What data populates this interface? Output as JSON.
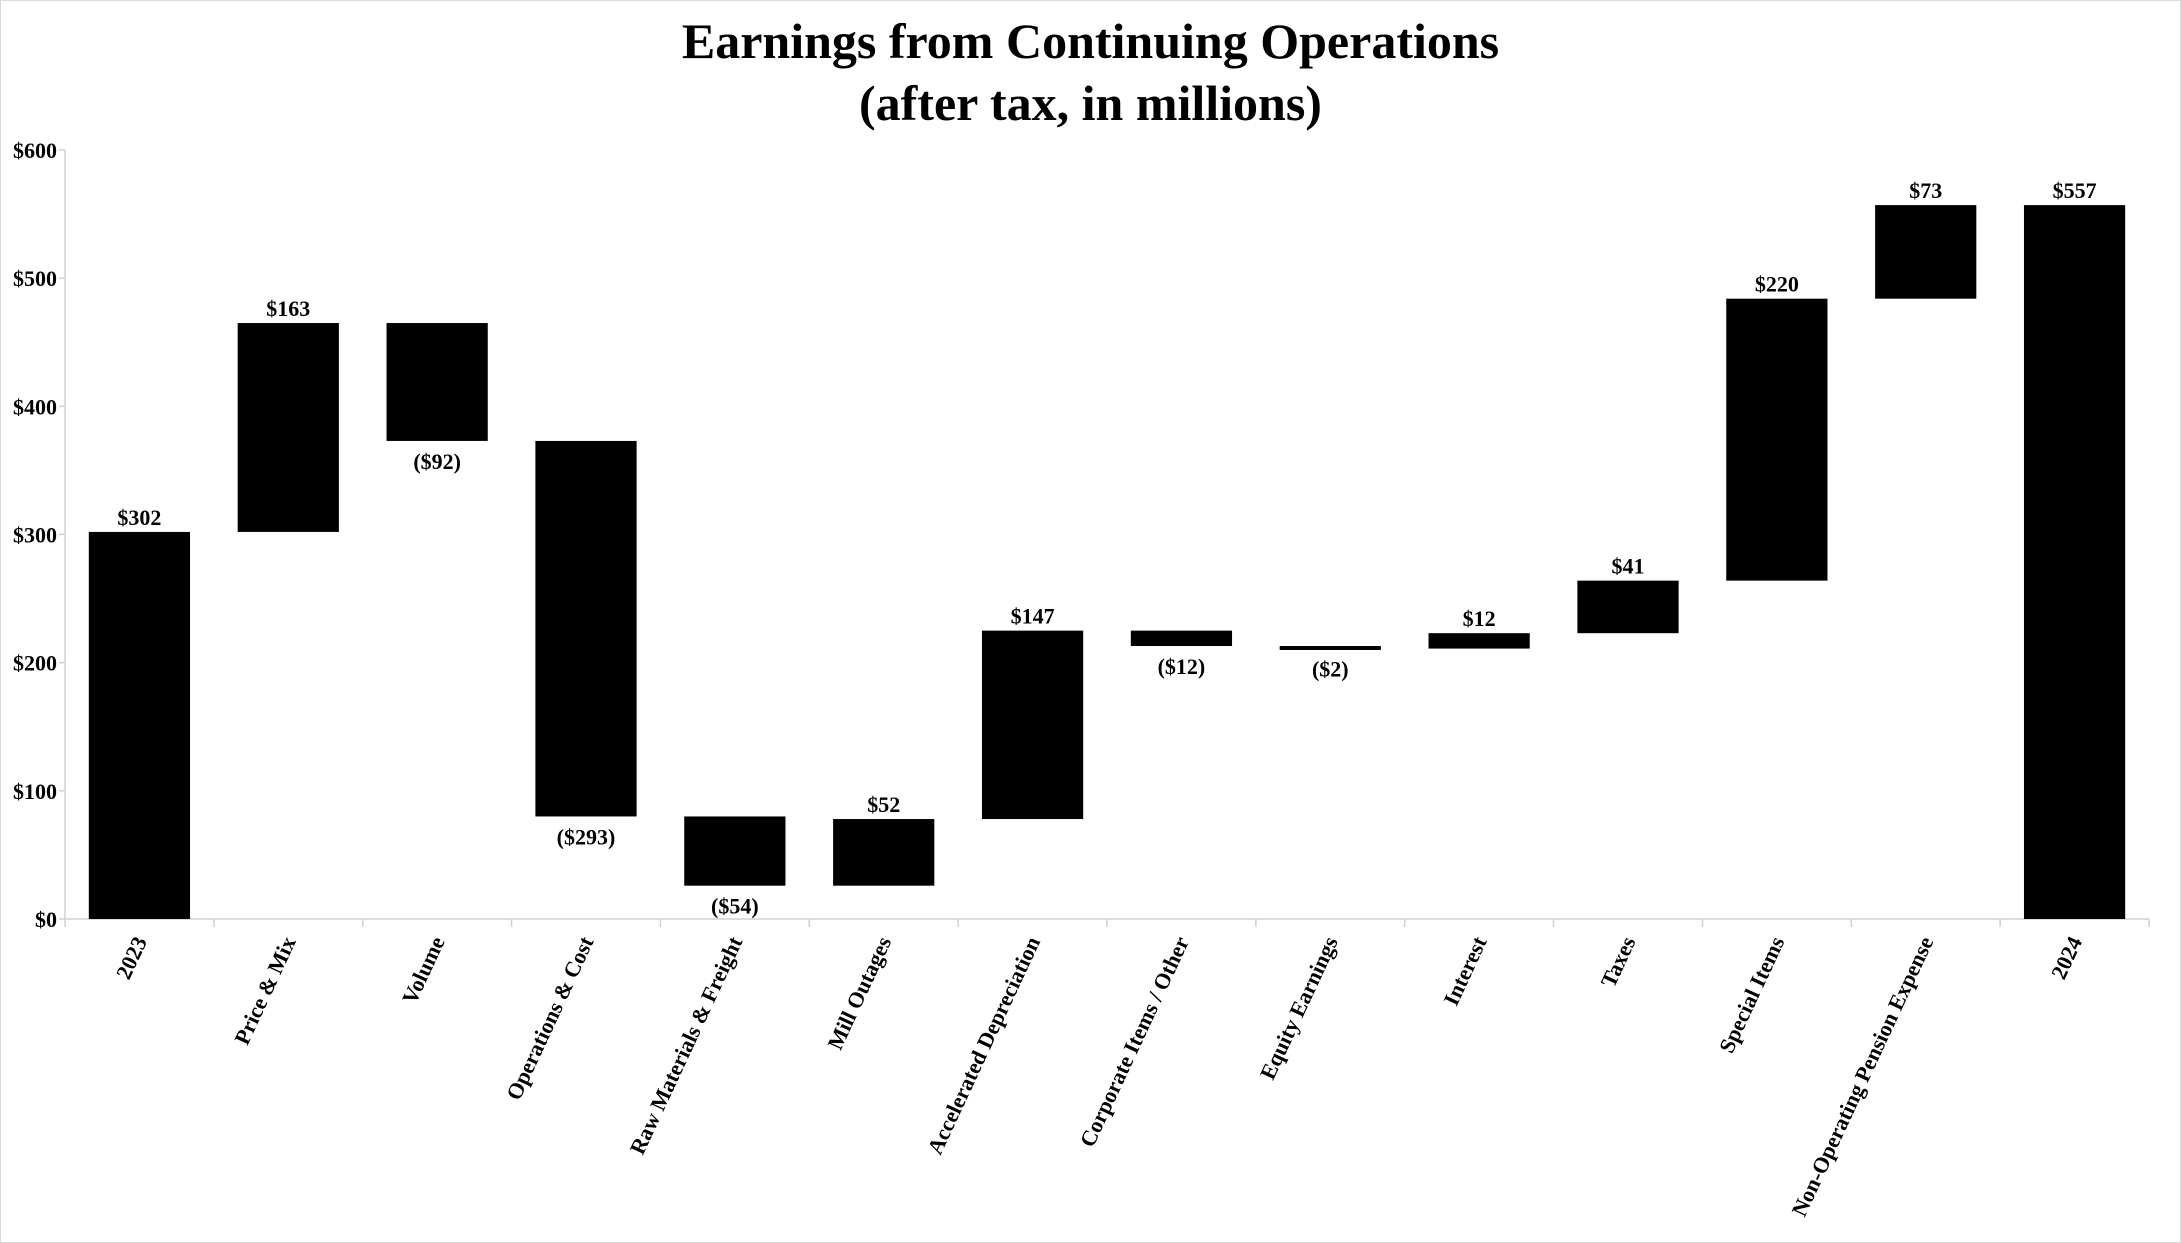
{
  "chart_data": {
    "type": "waterfall",
    "title": "Earnings from Continuing Operations",
    "subtitle": "(after tax, in millions)",
    "xlabel": "",
    "ylabel": "",
    "ylim": [
      0,
      600
    ],
    "yticks": [
      0,
      100,
      200,
      300,
      400,
      500,
      600
    ],
    "ytick_labels": [
      "$0",
      "$100",
      "$200",
      "$300",
      "$400",
      "$500",
      "$600"
    ],
    "grid": false,
    "bar_color": "#000000",
    "categories": [
      "2023",
      "Price & Mix",
      "Volume",
      "Operations & Cost",
      "Raw Materials & Freight",
      "Mill Outages",
      "Accelerated Depreciation",
      "Corporate Items / Other",
      "Equity Earnings",
      "Interest",
      "Taxes",
      "Special Items",
      "Non-Operating Pension Expense",
      "2024"
    ],
    "values": [
      302,
      163,
      -92,
      -293,
      -54,
      52,
      147,
      -12,
      -2,
      12,
      41,
      220,
      73,
      557
    ],
    "is_total": [
      true,
      false,
      false,
      false,
      false,
      false,
      false,
      false,
      false,
      false,
      false,
      false,
      false,
      true
    ],
    "data_labels": [
      "$302",
      "$163",
      "($92)",
      "($293)",
      "($54)",
      "$52",
      "$147",
      "($12)",
      "($2)",
      "$12",
      "$41",
      "$220",
      "$73",
      "$557"
    ]
  }
}
